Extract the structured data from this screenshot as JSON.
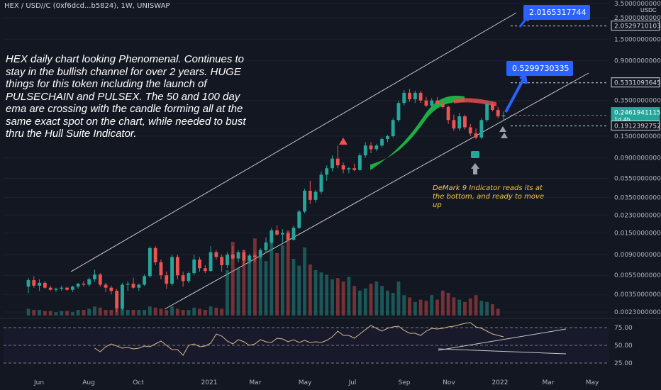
{
  "header": {
    "symbol_line": "HEX / USD//C (0xf6dcd...b5824), 1W, UNISWAP",
    "currency": "USDC"
  },
  "note_text": "HEX daily chart looking Phenomenal. Continues to stay in the bullish channel for over 2 years. HUGE things for this token including the launch of PULSECHAIN and PULSEX. The 50 and 100 day ema are crossing with the candle forming all at the same exact spot on the chart, while needed to bust thru the Hull Suite Indicator.",
  "demark_text": "DeMark 9 Indicator reads its at the bottom, and ready to move up",
  "callouts": {
    "target_high": "2.0165317744",
    "target_mid": "0.5299730335"
  },
  "colors": {
    "background": "#131722",
    "up": "#26a69a",
    "down": "#ef5350",
    "hull_up": "#1ec94a",
    "hull_down": "#e84a4a",
    "callout": "#2962ff"
  },
  "chart_data": {
    "type": "candlestick",
    "y_scale": "log",
    "x_ticks": [
      "Jun",
      "Aug",
      "Oct",
      "2021",
      "Mar",
      "May",
      "Jul",
      "Sep",
      "Nov",
      "2022",
      "Mar",
      "May"
    ],
    "y_ticks": [
      "3.5000000000",
      "2.5000000000",
      "1.5000000000",
      "0.9000000000",
      "0.3500000000",
      "0.1500000000",
      "0.0900000000",
      "0.0550000000",
      "0.0350000000",
      "0.0230000000",
      "0.0150000000",
      "0.0090000000",
      "0.0055000000",
      "0.0035000000",
      "0.0023000000"
    ],
    "price_labels": [
      {
        "text": "2.0529710103",
        "style": "outline"
      },
      {
        "text": "0.5331093645",
        "style": "outline"
      },
      {
        "text": "0.2461941115",
        "sub": "1d 4h",
        "style": "teal"
      },
      {
        "text": "0.1912392752",
        "style": "outline"
      }
    ],
    "candles": [
      [
        0.0042,
        0.0052,
        0.0036,
        0.0049
      ],
      [
        0.0049,
        0.0054,
        0.0041,
        0.0043
      ],
      [
        0.0043,
        0.005,
        0.0038,
        0.0046
      ],
      [
        0.0046,
        0.0048,
        0.004,
        0.0041
      ],
      [
        0.0041,
        0.0043,
        0.0038,
        0.0039
      ],
      [
        0.0039,
        0.0041,
        0.0037,
        0.004
      ],
      [
        0.004,
        0.0043,
        0.0038,
        0.0041
      ],
      [
        0.0041,
        0.0042,
        0.0038,
        0.0039
      ],
      [
        0.0039,
        0.0043,
        0.0037,
        0.0042
      ],
      [
        0.0042,
        0.0046,
        0.004,
        0.0045
      ],
      [
        0.0045,
        0.0048,
        0.0042,
        0.0044
      ],
      [
        0.0044,
        0.0052,
        0.0042,
        0.005
      ],
      [
        0.005,
        0.0063,
        0.0047,
        0.0056
      ],
      [
        0.0056,
        0.0058,
        0.0042,
        0.0044
      ],
      [
        0.0044,
        0.0046,
        0.0037,
        0.0041
      ],
      [
        0.0041,
        0.0043,
        0.0035,
        0.0038
      ],
      [
        0.0038,
        0.004,
        0.0023,
        0.0025
      ],
      [
        0.0025,
        0.0046,
        0.0024,
        0.0044
      ],
      [
        0.0044,
        0.0048,
        0.0038,
        0.0045
      ],
      [
        0.0045,
        0.0052,
        0.004,
        0.0041
      ],
      [
        0.0041,
        0.0045,
        0.0038,
        0.0044
      ],
      [
        0.0044,
        0.0056,
        0.0043,
        0.0054
      ],
      [
        0.0054,
        0.011,
        0.0052,
        0.0105
      ],
      [
        0.0105,
        0.011,
        0.007,
        0.0075
      ],
      [
        0.0075,
        0.008,
        0.005,
        0.0055
      ],
      [
        0.0055,
        0.006,
        0.004,
        0.0045
      ],
      [
        0.0045,
        0.009,
        0.0043,
        0.0085
      ],
      [
        0.0085,
        0.009,
        0.005,
        0.0055
      ],
      [
        0.0055,
        0.006,
        0.0042,
        0.0048
      ],
      [
        0.0048,
        0.006,
        0.0046,
        0.0058
      ],
      [
        0.0058,
        0.009,
        0.0055,
        0.008
      ],
      [
        0.008,
        0.0085,
        0.006,
        0.0065
      ],
      [
        0.0065,
        0.007,
        0.0058,
        0.0061
      ],
      [
        0.0061,
        0.011,
        0.006,
        0.0095
      ],
      [
        0.0095,
        0.01,
        0.008,
        0.0085
      ],
      [
        0.0085,
        0.009,
        0.006,
        0.007
      ],
      [
        0.007,
        0.0095,
        0.0065,
        0.009
      ],
      [
        0.009,
        0.011,
        0.008,
        0.0082
      ],
      [
        0.0082,
        0.01,
        0.0075,
        0.0095
      ],
      [
        0.0095,
        0.01,
        0.007,
        0.0078
      ],
      [
        0.0078,
        0.0092,
        0.0072,
        0.0088
      ],
      [
        0.0088,
        0.0095,
        0.0075,
        0.0085
      ],
      [
        0.0085,
        0.0105,
        0.0082,
        0.01
      ],
      [
        0.01,
        0.0135,
        0.0095,
        0.012
      ],
      [
        0.012,
        0.017,
        0.0115,
        0.016
      ],
      [
        0.016,
        0.018,
        0.014,
        0.0145
      ],
      [
        0.0145,
        0.0165,
        0.012,
        0.015
      ],
      [
        0.015,
        0.0155,
        0.0125,
        0.0128
      ],
      [
        0.0128,
        0.018,
        0.0125,
        0.017
      ],
      [
        0.017,
        0.026,
        0.0165,
        0.025
      ],
      [
        0.025,
        0.043,
        0.024,
        0.041
      ],
      [
        0.041,
        0.052,
        0.03,
        0.033
      ],
      [
        0.033,
        0.042,
        0.031,
        0.04
      ],
      [
        0.04,
        0.065,
        0.038,
        0.06
      ],
      [
        0.06,
        0.075,
        0.052,
        0.07
      ],
      [
        0.07,
        0.095,
        0.065,
        0.088
      ],
      [
        0.088,
        0.12,
        0.07,
        0.075
      ],
      [
        0.075,
        0.08,
        0.062,
        0.068
      ],
      [
        0.068,
        0.072,
        0.062,
        0.07
      ],
      [
        0.07,
        0.078,
        0.065,
        0.067
      ],
      [
        0.067,
        0.1,
        0.066,
        0.095
      ],
      [
        0.095,
        0.13,
        0.09,
        0.12
      ],
      [
        0.12,
        0.13,
        0.1,
        0.11
      ],
      [
        0.11,
        0.125,
        0.105,
        0.12
      ],
      [
        0.12,
        0.145,
        0.115,
        0.14
      ],
      [
        0.14,
        0.155,
        0.13,
        0.15
      ],
      [
        0.15,
        0.23,
        0.145,
        0.22
      ],
      [
        0.22,
        0.35,
        0.21,
        0.33
      ],
      [
        0.33,
        0.45,
        0.31,
        0.42
      ],
      [
        0.42,
        0.46,
        0.34,
        0.36
      ],
      [
        0.36,
        0.44,
        0.33,
        0.42
      ],
      [
        0.42,
        0.44,
        0.33,
        0.35
      ],
      [
        0.35,
        0.38,
        0.3,
        0.31
      ],
      [
        0.31,
        0.37,
        0.28,
        0.35
      ],
      [
        0.35,
        0.38,
        0.3,
        0.32
      ],
      [
        0.32,
        0.35,
        0.29,
        0.3
      ],
      [
        0.3,
        0.31,
        0.2,
        0.22
      ],
      [
        0.22,
        0.25,
        0.17,
        0.18
      ],
      [
        0.18,
        0.26,
        0.17,
        0.24
      ],
      [
        0.24,
        0.25,
        0.175,
        0.185
      ],
      [
        0.185,
        0.2,
        0.15,
        0.16
      ],
      [
        0.16,
        0.18,
        0.14,
        0.145
      ],
      [
        0.145,
        0.23,
        0.14,
        0.22
      ],
      [
        0.22,
        0.35,
        0.21,
        0.32
      ],
      [
        0.32,
        0.34,
        0.27,
        0.28
      ],
      [
        0.28,
        0.3,
        0.23,
        0.24
      ],
      [
        0.24,
        0.27,
        0.22,
        0.246
      ]
    ],
    "volume": [
      0.06,
      0.05,
      0.05,
      0.04,
      0.04,
      0.03,
      0.04,
      0.04,
      0.03,
      0.05,
      0.05,
      0.06,
      0.08,
      0.07,
      0.05,
      0.05,
      0.06,
      0.07,
      0.05,
      0.05,
      0.05,
      0.05,
      0.08,
      0.07,
      0.06,
      0.05,
      0.08,
      0.06,
      0.05,
      0.05,
      0.07,
      0.06,
      0.05,
      0.08,
      0.07,
      0.06,
      0.4,
      0.65,
      0.42,
      0.58,
      0.5,
      0.68,
      0.52,
      0.48,
      0.66,
      0.55,
      0.62,
      0.75,
      0.5,
      0.44,
      0.6,
      0.45,
      0.4,
      0.38,
      0.36,
      0.32,
      0.33,
      0.3,
      0.34,
      0.26,
      0.22,
      0.24,
      0.28,
      0.3,
      0.26,
      0.22,
      0.2,
      0.3,
      0.18,
      0.16,
      0.12,
      0.14,
      0.13,
      0.18,
      0.14,
      0.22,
      0.2,
      0.16,
      0.14,
      0.12,
      0.15,
      0.18,
      0.13,
      0.12,
      0.1,
      0.06
    ],
    "rsi_levels": [
      75.0,
      50.0,
      25.0
    ],
    "rsi_tick_labels": [
      "75.00",
      "50.00",
      "25.00"
    ],
    "rsi": [
      46,
      41,
      48,
      52,
      49,
      46,
      47,
      45,
      46,
      49,
      48,
      52,
      56,
      50,
      44,
      44,
      36,
      50,
      52,
      48,
      49,
      53,
      66,
      63,
      56,
      52,
      58,
      55,
      50,
      52,
      58,
      55,
      54,
      60,
      59,
      55,
      58,
      54,
      57,
      54,
      55,
      54,
      57,
      62,
      70,
      64,
      64,
      60,
      66,
      72,
      78,
      74,
      70,
      74,
      76,
      77,
      71,
      67,
      67,
      64,
      70,
      74,
      73,
      74,
      76,
      77,
      79,
      81,
      82,
      76,
      74,
      70,
      66,
      64,
      62,
      58,
      52,
      48,
      54,
      48,
      46,
      44,
      52,
      58,
      52,
      50,
      53
    ]
  }
}
